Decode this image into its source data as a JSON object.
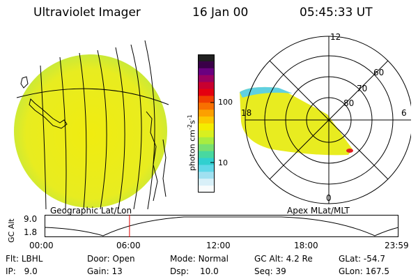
{
  "header": {
    "title": "Ultraviolet Imager",
    "date": "16 Jan 00",
    "time": "05:45:33 UT"
  },
  "colorbar": {
    "label": "photon cm",
    "label_sup1": "-2",
    "label_s": "s",
    "label_sup2": "-1",
    "tick_high": "100",
    "tick_low": "10",
    "colors": [
      "#202020",
      "#3a0048",
      "#6a0080",
      "#9a0060",
      "#c80030",
      "#e40010",
      "#f04000",
      "#f87000",
      "#fca000",
      "#fcc800",
      "#f4ec00",
      "#d8f020",
      "#a8ec40",
      "#78e070",
      "#48d8a0",
      "#30d0d0",
      "#60d8e8",
      "#a0e0f0",
      "#d8f0f8",
      "#f8fcfc"
    ]
  },
  "left_panel": {
    "caption": "Geographic Lat/Lon"
  },
  "right_panel": {
    "caption": "Apex MLat/MLT",
    "mlt_labels": {
      "top": "12",
      "left": "18",
      "right": "6",
      "bottom": "0"
    },
    "lat_labels": [
      "60",
      "70",
      "80"
    ]
  },
  "timeline": {
    "y_label": "GC Alt",
    "y_max": "9.0",
    "y_min": "1.8",
    "ticks": [
      "00:00",
      "06:00",
      "12:00",
      "18:00",
      "23:59"
    ],
    "marker_hour": 5.76
  },
  "status": {
    "flt_label": "Flt:",
    "flt_value": "LBHL",
    "ip_label": "IP:",
    "ip_value": "9.0",
    "door_label": "Door:",
    "door_value": "Open",
    "gain_label": "Gain:",
    "gain_value": "13",
    "mode_label": "Mode:",
    "mode_value": "Normal",
    "dsp_label": "Dsp:",
    "dsp_value": "10.0",
    "gcalt_label": "GC Alt:",
    "gcalt_value": "4.2 Re",
    "seq_label": "Seq:",
    "seq_value": "39",
    "glat_label": "GLat:",
    "glat_value": "-54.7",
    "glon_label": "GLon:",
    "glon_value": "167.5"
  }
}
